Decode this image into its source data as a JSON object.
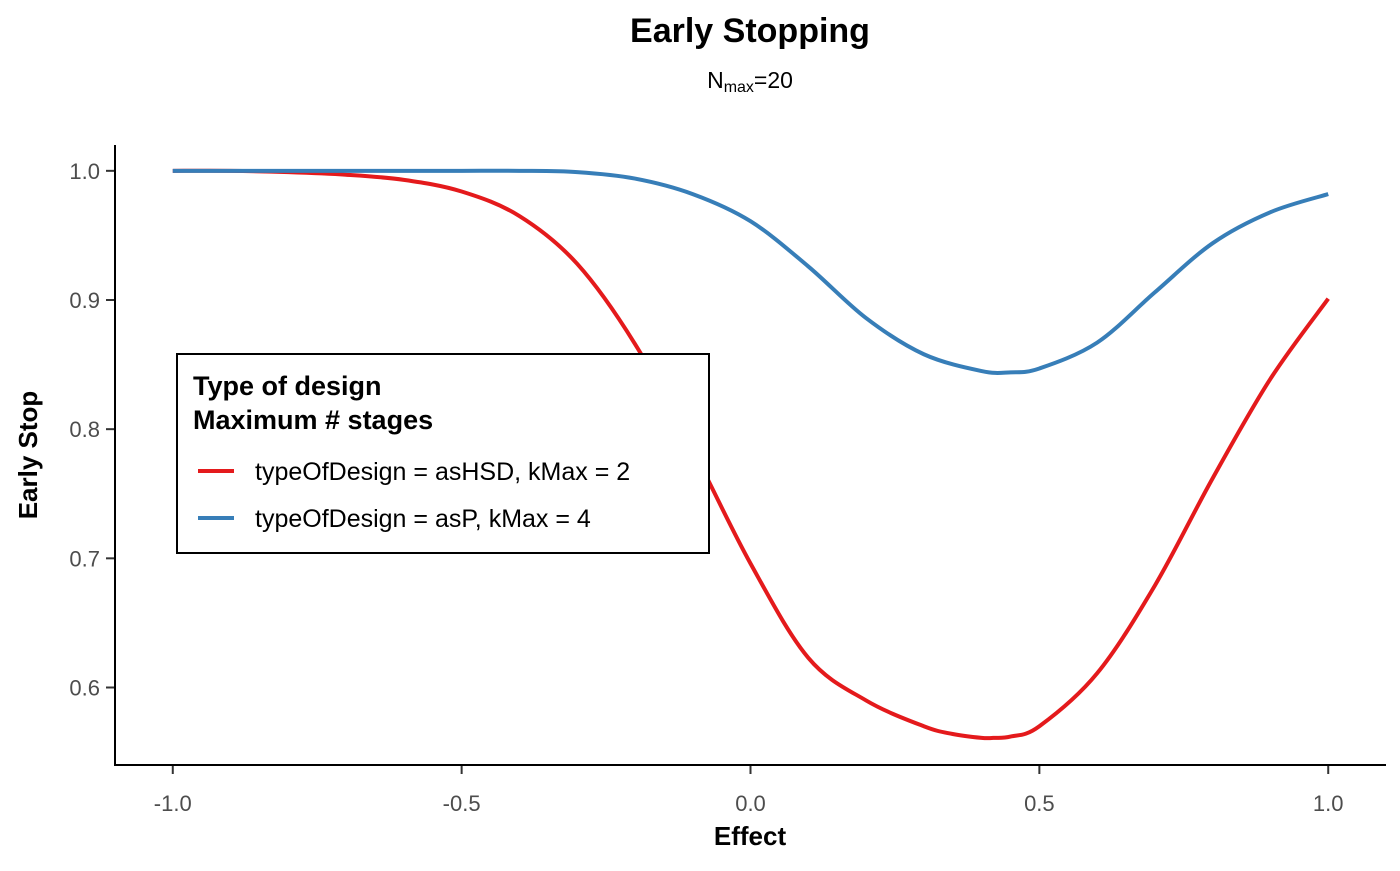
{
  "chart_data": {
    "type": "line",
    "title": "Early Stopping",
    "subtitle": {
      "base": "N",
      "subscript": "max",
      "suffix": "=20"
    },
    "xlabel": "Effect",
    "ylabel": "Early Stop",
    "xlim": [
      -1.1,
      1.1
    ],
    "ylim": [
      0.54,
      1.02
    ],
    "xticks": [
      -1.0,
      -0.5,
      0.0,
      0.5,
      1.0
    ],
    "xtick_labels": [
      "-1.0",
      "-0.5",
      "0.0",
      "0.5",
      "1.0"
    ],
    "yticks": [
      0.6,
      0.7,
      0.8,
      0.9,
      1.0
    ],
    "ytick_labels": [
      "0.6",
      "0.7",
      "0.8",
      "0.9",
      "1.0"
    ],
    "grid": false,
    "legend": {
      "title_lines": [
        "Type of design",
        "Maximum # stages"
      ],
      "placement": "center-left"
    },
    "series": [
      {
        "name": "typeOfDesign = asHSD, kMax = 2",
        "color": "#E41A1C",
        "x": [
          -1.0,
          -0.9,
          -0.8,
          -0.7,
          -0.6,
          -0.5,
          -0.4,
          -0.3,
          -0.2,
          -0.1,
          0.0,
          0.1,
          0.2,
          0.3,
          0.35,
          0.4,
          0.42,
          0.45,
          0.5,
          0.6,
          0.7,
          0.8,
          0.9,
          1.0
        ],
        "y": [
          1.0,
          1.0,
          0.999,
          0.997,
          0.993,
          0.984,
          0.965,
          0.928,
          0.866,
          0.784,
          0.696,
          0.623,
          0.59,
          0.57,
          0.564,
          0.561,
          0.561,
          0.562,
          0.57,
          0.611,
          0.679,
          0.762,
          0.839,
          0.901
        ]
      },
      {
        "name": "typeOfDesign = asP, kMax = 4",
        "color": "#377EB8",
        "x": [
          -1.0,
          -0.9,
          -0.8,
          -0.7,
          -0.6,
          -0.5,
          -0.4,
          -0.3,
          -0.2,
          -0.1,
          0.0,
          0.1,
          0.2,
          0.3,
          0.4,
          0.45,
          0.5,
          0.6,
          0.7,
          0.8,
          0.9,
          1.0
        ],
        "y": [
          1.0,
          1.0,
          1.0,
          1.0,
          1.0,
          1.0,
          1.0,
          0.999,
          0.994,
          0.982,
          0.961,
          0.926,
          0.886,
          0.858,
          0.845,
          0.844,
          0.847,
          0.867,
          0.906,
          0.944,
          0.968,
          0.982
        ]
      }
    ]
  }
}
